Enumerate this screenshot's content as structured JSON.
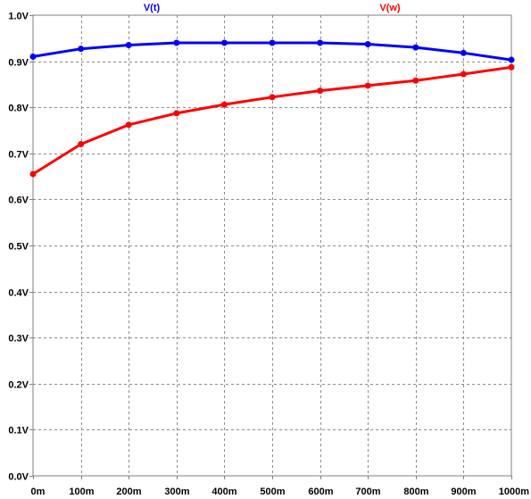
{
  "chart_data": {
    "type": "line",
    "title": "",
    "xlabel": "",
    "ylabel": "",
    "xlim": [
      0,
      1000
    ],
    "ylim": [
      0.0,
      1.0
    ],
    "grid": true,
    "legend": "top",
    "x": [
      0,
      100,
      200,
      300,
      400,
      500,
      600,
      700,
      800,
      900,
      1000
    ],
    "x_tick_labels": [
      "0m",
      "100m",
      "200m",
      "300m",
      "400m",
      "500m",
      "600m",
      "700m",
      "800m",
      "900m",
      "1000m"
    ],
    "y_ticks": [
      0.0,
      0.1,
      0.2,
      0.3,
      0.4,
      0.5,
      0.6,
      0.7,
      0.8,
      0.9,
      1.0
    ],
    "y_tick_labels": [
      "0.0V",
      "0.1V",
      "0.2V",
      "0.3V",
      "0.4V",
      "0.5V",
      "0.6V",
      "0.7V",
      "0.8V",
      "0.9V",
      "1.0V"
    ],
    "series": [
      {
        "name": "V(t)",
        "color": "#0000ff",
        "values": [
          0.91,
          0.927,
          0.935,
          0.94,
          0.94,
          0.94,
          0.94,
          0.937,
          0.93,
          0.918,
          0.903
        ]
      },
      {
        "name": "V(w)",
        "color": "#ff0000",
        "values": [
          0.655,
          0.72,
          0.762,
          0.787,
          0.806,
          0.822,
          0.836,
          0.847,
          0.858,
          0.872,
          0.887
        ]
      }
    ]
  }
}
